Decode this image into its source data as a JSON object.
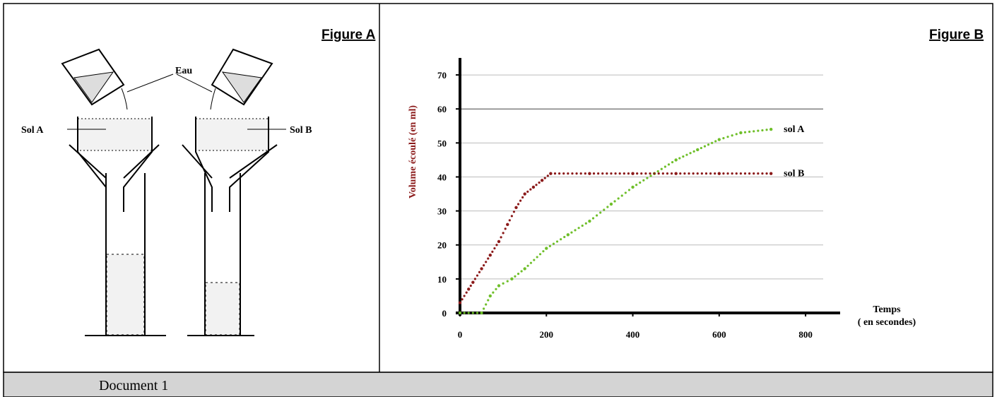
{
  "figure_a": {
    "title": "Figure A",
    "labels": [
      "Eau",
      "Sol A",
      "Sol B"
    ]
  },
  "chart_data": {
    "type": "line",
    "title": "Figure B",
    "y_label": "Volume écoulé (en ml)",
    "x_label": [
      "Temps",
      "( en secondes)"
    ],
    "xlim": [
      0,
      880
    ],
    "ylim": [
      0,
      75
    ],
    "xticks": [
      0,
      200,
      400,
      600,
      800
    ],
    "yticks": [
      0,
      10,
      20,
      30,
      40,
      50,
      60,
      70
    ],
    "grid": true,
    "series": [
      {
        "name": "sol A",
        "color": "#6fbf2a",
        "x": [
          0,
          50,
          70,
          90,
          120,
          150,
          200,
          250,
          300,
          350,
          400,
          450,
          500,
          550,
          600,
          650,
          720
        ],
        "values": [
          0,
          0,
          5,
          8,
          10,
          13,
          19,
          23,
          27,
          32,
          37,
          41,
          45,
          48,
          51,
          53,
          54
        ]
      },
      {
        "name": "sol B",
        "color": "#8b1a1a",
        "x": [
          0,
          20,
          30,
          50,
          70,
          90,
          110,
          130,
          150,
          170,
          190,
          210,
          300,
          400,
          500,
          600,
          720
        ],
        "values": [
          3,
          7,
          9,
          13,
          17,
          21,
          26,
          31,
          35,
          37,
          39,
          41,
          41,
          41,
          41,
          41,
          41
        ]
      }
    ]
  },
  "caption": "Document 1"
}
